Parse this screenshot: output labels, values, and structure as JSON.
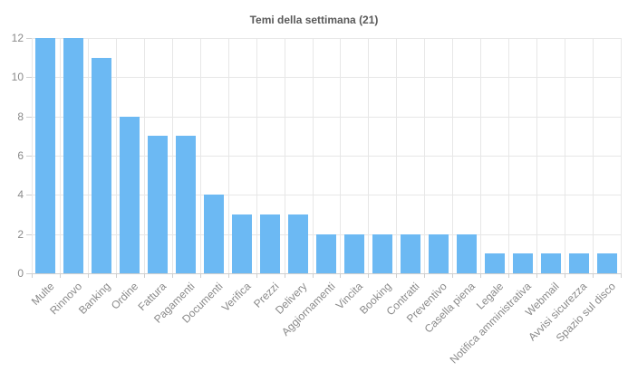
{
  "chart_data": {
    "type": "bar",
    "title": "Temi della settimana (21)",
    "categories": [
      "Multe",
      "Rinnovo",
      "Banking",
      "Ordine",
      "Fattura",
      "Pagamenti",
      "Documenti",
      "Verifica",
      "Prezzi",
      "Delivery",
      "Aggiornamenti",
      "Vincita",
      "Booking",
      "Contratti",
      "Preventivo",
      "Casella piena",
      "Legale",
      "Notifica amministrativa",
      "Webmail",
      "Avvisi sicurezza",
      "Spazio sul disco"
    ],
    "values": [
      12,
      12,
      11,
      8,
      7,
      7,
      4,
      3,
      3,
      3,
      2,
      2,
      2,
      2,
      2,
      2,
      1,
      1,
      1,
      1,
      1
    ],
    "xlabel": "",
    "ylabel": "",
    "ylim": [
      0,
      12
    ],
    "yticks": [
      0,
      2,
      4,
      6,
      8,
      10,
      12
    ],
    "grid": "both",
    "legend": "none",
    "x_label_rotation_deg": 45,
    "colors": {
      "bar": "#6cb9f3",
      "grid": "#e7e7e7",
      "axis": "#cfcfcf",
      "tick_label": "#8a8a8a",
      "title": "#595959"
    }
  }
}
